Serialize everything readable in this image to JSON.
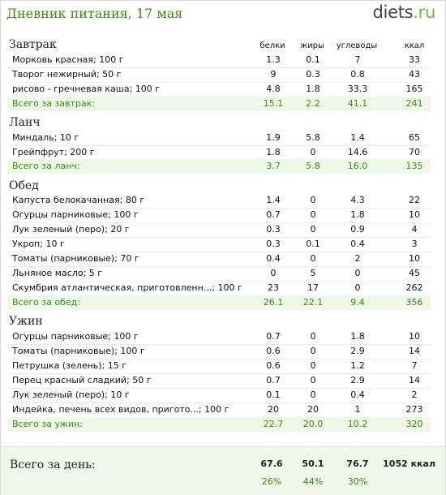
{
  "header": {
    "title": "Дневник питания, 17 мая",
    "brand_name": "diets",
    "brand_tld": ".ru"
  },
  "columns": [
    "белки",
    "жиры",
    "углеводы",
    "ккал"
  ],
  "sections": [
    {
      "title": "Завтрак",
      "items": [
        {
          "name": "Морковь красная; 100 г",
          "p": "1.3",
          "f": "0.1",
          "c": "7",
          "k": "33"
        },
        {
          "name": "Творог нежирный; 50 г",
          "p": "9",
          "f": "0.3",
          "c": "0.8",
          "k": "43"
        },
        {
          "name": "рисово - гречневая каша; 100 г",
          "p": "4.8",
          "f": "1.8",
          "c": "33.3",
          "k": "165"
        }
      ],
      "total": {
        "name": "Всего за завтрак:",
        "p": "15.1",
        "f": "2.2",
        "c": "41.1",
        "k": "241"
      }
    },
    {
      "title": "Ланч",
      "items": [
        {
          "name": "Миндаль; 10 г",
          "p": "1.9",
          "f": "5.8",
          "c": "1.4",
          "k": "65"
        },
        {
          "name": "Грейпфрут; 200 г",
          "p": "1.8",
          "f": "0",
          "c": "14.6",
          "k": "70"
        }
      ],
      "total": {
        "name": "Всего за ланч:",
        "p": "3.7",
        "f": "5.8",
        "c": "16.0",
        "k": "135"
      }
    },
    {
      "title": "Обед",
      "items": [
        {
          "name": "Капуста белокачанная; 80 г",
          "p": "1.4",
          "f": "0",
          "c": "4.3",
          "k": "22"
        },
        {
          "name": "Огурцы парниковые; 100 г",
          "p": "0.7",
          "f": "0",
          "c": "1.8",
          "k": "10"
        },
        {
          "name": "Лук зеленый (перо); 20 г",
          "p": "0.3",
          "f": "0",
          "c": "0.9",
          "k": "4"
        },
        {
          "name": "Укроп; 10 г",
          "p": "0.3",
          "f": "0.1",
          "c": "0.4",
          "k": "3"
        },
        {
          "name": "Томаты (парниковые); 70 г",
          "p": "0.4",
          "f": "0",
          "c": "2",
          "k": "10"
        },
        {
          "name": "Льняное масло; 5 г",
          "p": "0",
          "f": "5",
          "c": "0",
          "k": "45"
        },
        {
          "name": "Скумбрия атлантическая, приготовленн...; 100 г",
          "p": "23",
          "f": "17",
          "c": "0",
          "k": "262"
        }
      ],
      "total": {
        "name": "Всего за обед:",
        "p": "26.1",
        "f": "22.1",
        "c": "9.4",
        "k": "356"
      }
    },
    {
      "title": "Ужин",
      "items": [
        {
          "name": "Огурцы парниковые; 100 г",
          "p": "0.7",
          "f": "0",
          "c": "1.8",
          "k": "10"
        },
        {
          "name": "Томаты (парниковые); 100 г",
          "p": "0.6",
          "f": "0",
          "c": "2.9",
          "k": "14"
        },
        {
          "name": "Петрушка (зелень); 15 г",
          "p": "0.6",
          "f": "0",
          "c": "1.2",
          "k": "7"
        },
        {
          "name": "Перец красный сладкий; 50 г",
          "p": "0.7",
          "f": "0",
          "c": "2.9",
          "k": "14"
        },
        {
          "name": "Лук зеленый (перо); 10 г",
          "p": "0.1",
          "f": "0",
          "c": "0.4",
          "k": "2"
        },
        {
          "name": "Индейка, печень всех видов, пригото...; 100 г",
          "p": "20",
          "f": "20",
          "c": "1",
          "k": "273"
        }
      ],
      "total": {
        "name": "Всего за ужин:",
        "p": "22.7",
        "f": "20.0",
        "c": "10.2",
        "k": "320"
      }
    }
  ],
  "day_total": {
    "label": "Всего за день:",
    "p": "67.6",
    "f": "50.1",
    "c": "76.7",
    "k": "1052 ккал",
    "p_pct": "26%",
    "f_pct": "44%",
    "c_pct": "30%"
  },
  "colors": {
    "accent": "#3a8a1c",
    "total_bg": "#eef7e8"
  }
}
